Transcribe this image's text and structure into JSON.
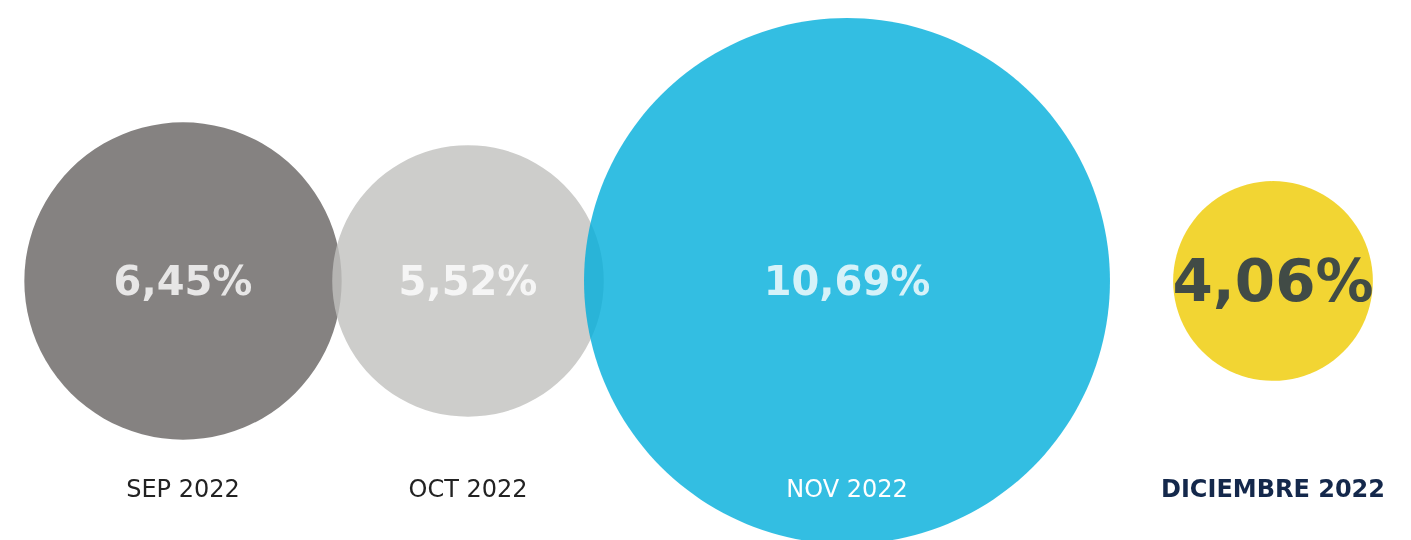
{
  "chart_data": {
    "type": "other",
    "categories": [
      "SEP 2022",
      "OCT 2022",
      "NOV 2022",
      "DICIEMBRE 2022"
    ],
    "values": [
      6.45,
      5.52,
      10.69,
      4.06
    ],
    "value_labels": [
      "6,45%",
      "5,52%",
      "10,69%",
      "4,06%"
    ],
    "colors": [
      "#676361",
      "#c1c0be",
      "#00aedb",
      "#efcb00"
    ]
  }
}
